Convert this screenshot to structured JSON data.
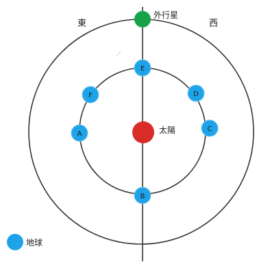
{
  "labels": {
    "east": "東",
    "west": "西",
    "outer_planet": "外行星",
    "sun": "太陽",
    "legend_earth": "地球"
  },
  "earth_positions": [
    {
      "id": "E",
      "letter": "E"
    },
    {
      "id": "D",
      "letter": "D"
    },
    {
      "id": "C",
      "letter": "C"
    },
    {
      "id": "B",
      "letter": "B"
    },
    {
      "id": "A",
      "letter": "A"
    },
    {
      "id": "F",
      "letter": "F"
    }
  ],
  "colors": {
    "earth": "#1fa3e8",
    "earth_stroke": "#7fc8ef",
    "sun": "#d92b27",
    "outer_planet": "#16a24a",
    "orbit": "#333333",
    "axis_line": "#333333"
  }
}
